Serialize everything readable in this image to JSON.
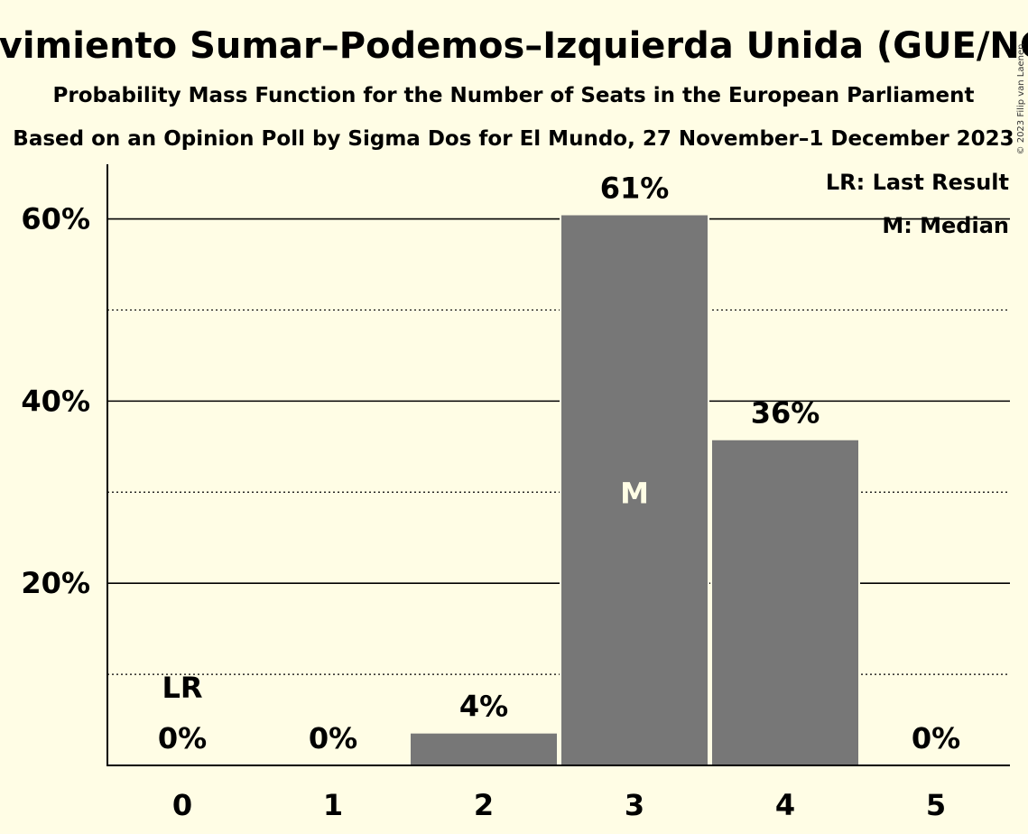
{
  "chart_data": {
    "type": "bar",
    "title": "Movimiento Sumar–Podemos–Izquierda Unida (GUE/NGL)",
    "subtitle": "Probability Mass Function for the Number of Seats in the European Parliament",
    "subtitle2": "Based on an Opinion Poll by Sigma Dos for El Mundo, 27 November–1 December 2023",
    "categories": [
      "0",
      "1",
      "2",
      "3",
      "4",
      "5"
    ],
    "values": [
      0,
      0,
      3.6,
      60.5,
      35.8,
      0
    ],
    "data_labels": [
      "0%",
      "0%",
      "4%",
      "61%",
      "36%",
      "0%"
    ],
    "ylim": [
      0,
      66
    ],
    "yticks": [
      20,
      40,
      60
    ],
    "ytick_labels": [
      "20%",
      "40%",
      "60%"
    ],
    "minor_gridlines": [
      10,
      30,
      50
    ],
    "last_result_index": 0,
    "last_result_label": "LR",
    "median_index": 3,
    "median_label": "M",
    "legend": [
      "LR: Last Result",
      "M: Median"
    ],
    "legend_position": "top-right",
    "bar_color": "#777777",
    "background_color": "#fffde5"
  },
  "copyright": "© 2023 Filip van Laenen"
}
